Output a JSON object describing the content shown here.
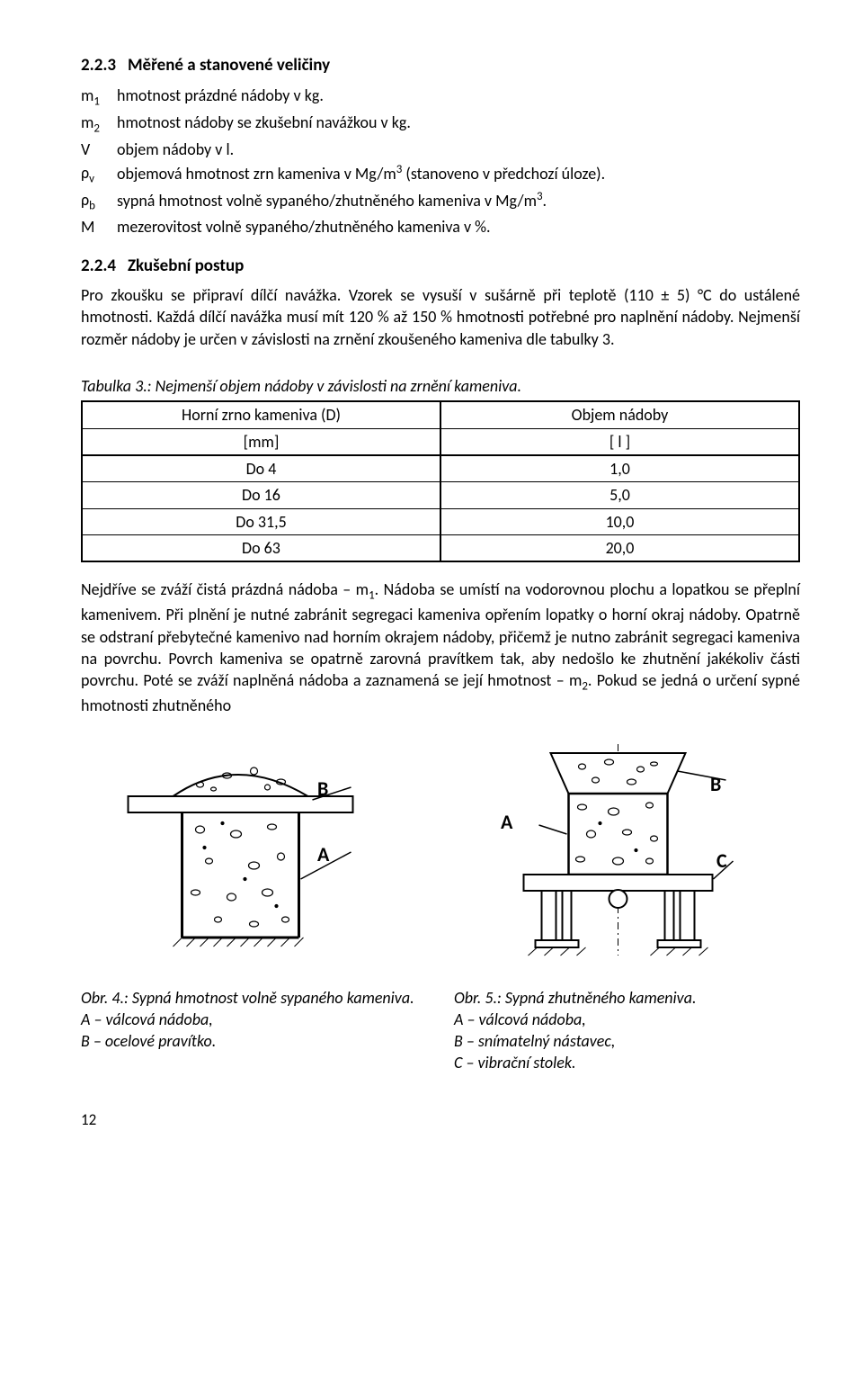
{
  "section": {
    "number": "2.2.3",
    "title": "Měřené a stanovené veličiny"
  },
  "defs": [
    {
      "sym": "m<sub>1</sub>",
      "txt": "hmotnost prázdné nádoby v kg."
    },
    {
      "sym": "m<sub>2</sub>",
      "txt": "hmotnost nádoby se zkušební navážkou v kg."
    },
    {
      "sym": "V",
      "txt": "objem nádoby v l."
    },
    {
      "sym": "ρ<sub>v</sub>",
      "txt": "objemová hmotnost zrn kameniva v Mg/m<sup>3</sup> (stanoveno v předchozí úloze)."
    },
    {
      "sym": "ρ<sub>b</sub>",
      "txt": "sypná hmotnost volně sypaného/zhutněného kameniva v Mg/m<sup>3</sup>."
    },
    {
      "sym": "M",
      "txt": "mezerovitost volně sypaného/zhutněného kameniva v %."
    }
  ],
  "section2": {
    "number": "2.2.4",
    "title": "Zkušební postup"
  },
  "para1": "Pro zkoušku se připraví dílčí navážka. Vzorek se vysuší v sušárně při teplotě (110 ± 5) °C do ustálené hmotnosti. Každá dílčí navážka musí mít 120 % až 150 % hmotnosti potřebné pro naplnění nádoby. Nejmenší rozměr nádoby je určen v závislosti na zrnění zkoušeného kameniva dle tabulky 3.",
  "table": {
    "caption": "Tabulka 3.: Nejmenší objem nádoby v závislosti na zrnění kameniva.",
    "h1a": "Horní zrno kameniva (D)",
    "h1b": "[mm]",
    "h2a": "Objem nádoby",
    "h2b": "[ l ]",
    "rows": [
      {
        "a": "Do 4",
        "b": "1,0"
      },
      {
        "a": "Do 16",
        "b": "5,0"
      },
      {
        "a": "Do 31,5",
        "b": "10,0"
      },
      {
        "a": "Do 63",
        "b": "20,0"
      }
    ]
  },
  "para2": "Nejdříve se zváží čistá prázdná nádoba – m<sub>1</sub>. Nádoba se umístí na vodorovnou plochu a lopatkou se přeplní kamenivem. Při plnění je nutné zabránit segregaci kameniva opřením lopatky o horní okraj nádoby. Opatrně se odstraní přebytečné kamenivo nad horním okrajem nádoby, přičemž je nutno zabránit segregaci kameniva na povrchu. Povrch kameniva se opatrně zarovná pravítkem tak, aby nedošlo ke zhutnění jakékoliv části povrchu. Poté se zváží naplněná nádoba a zaznamená se její hmotnost – m<sub>2</sub>. Pokud se jedná o určení sypné hmotnosti zhutněného",
  "fig4": {
    "cap": "Obr. 4.: Sypná hmotnost volně sypaného kameniva.",
    "l1": "A – válcová nádoba,",
    "l2": "B – ocelové pravítko.",
    "labelA": "A",
    "labelB": "B"
  },
  "fig5": {
    "cap": "Obr. 5.: Sypná zhutněného kameniva.",
    "l1": "A – válcová nádoba,",
    "l2": "B – snímatelný nástavec,",
    "l3": "C – vibrační stolek.",
    "labelA": "A",
    "labelB": "B",
    "labelC": "C"
  },
  "pagenum": "12"
}
